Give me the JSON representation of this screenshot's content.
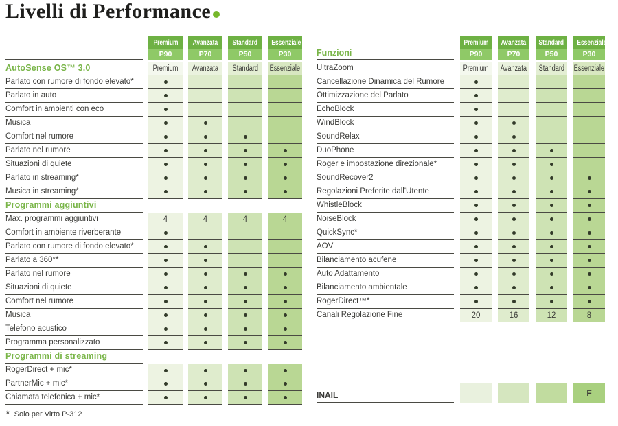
{
  "title": {
    "text": "Livelli di Performance"
  },
  "colors": {
    "accent_green": "#76b82a",
    "heading_green": "#79b548",
    "header_tier_bg": "#6eb144",
    "header_model_bg": "#8fc967",
    "rule": "#4a4a43",
    "label_text": "#3b3b38",
    "dot": "#333b2a",
    "col_normal": [
      "#edf3e2",
      "#dfeccd",
      "#cee3b4",
      "#b9d794"
    ],
    "col_light": [
      "#f4f8ee",
      "#eaf2de",
      "#e3eed3",
      "#d8e7c1"
    ],
    "col_inail": [
      "#e9f1de",
      "#d5e6bf",
      "#c1dc9f",
      "#a9d07f"
    ]
  },
  "columns": [
    {
      "tier": "Premium",
      "model": "P90"
    },
    {
      "tier": "Avanzata",
      "model": "P70"
    },
    {
      "tier": "Standard",
      "model": "P50"
    },
    {
      "tier": "Essenziale",
      "model": "P30"
    }
  ],
  "left_table": {
    "sections": [
      {
        "heading": "AutoSense OS™ 3.0",
        "heading_values": [
          "Premium",
          "Avanzata",
          "Standard",
          "Essenziale"
        ],
        "rows": [
          {
            "label": "Parlato con rumore di fondo elevato*",
            "values": [
              "dot",
              "",
              "",
              ""
            ]
          },
          {
            "label": "Parlato in auto",
            "values": [
              "dot",
              "",
              "",
              ""
            ]
          },
          {
            "label": "Comfort in ambienti con eco",
            "values": [
              "dot",
              "",
              "",
              ""
            ]
          },
          {
            "label": "Musica",
            "values": [
              "dot",
              "dot",
              "",
              ""
            ]
          },
          {
            "label": "Comfort nel rumore",
            "values": [
              "dot",
              "dot",
              "dot",
              ""
            ]
          },
          {
            "label": "Parlato nel rumore",
            "values": [
              "dot",
              "dot",
              "dot",
              "dot"
            ]
          },
          {
            "label": "Situazioni di quiete",
            "values": [
              "dot",
              "dot",
              "dot",
              "dot"
            ]
          },
          {
            "label": "Parlato in streaming*",
            "values": [
              "dot",
              "dot",
              "dot",
              "dot"
            ]
          },
          {
            "label": "Musica in streaming*",
            "values": [
              "dot",
              "dot",
              "dot",
              "dot"
            ]
          }
        ]
      },
      {
        "heading": "Programmi aggiuntivi",
        "heading_values": null,
        "rows": [
          {
            "label": "Max. programmi aggiuntivi",
            "values": [
              "4",
              "4",
              "4",
              "4"
            ]
          },
          {
            "label": "Comfort in ambiente riverberante",
            "values": [
              "dot",
              "",
              "",
              ""
            ]
          },
          {
            "label": "Parlato con rumore di fondo elevato*",
            "values": [
              "dot",
              "dot",
              "",
              ""
            ]
          },
          {
            "label": "Parlato a 360°*",
            "values": [
              "dot",
              "dot",
              "",
              ""
            ]
          },
          {
            "label": "Parlato nel rumore",
            "values": [
              "dot",
              "dot",
              "dot",
              "dot"
            ]
          },
          {
            "label": "Situazioni di quiete",
            "values": [
              "dot",
              "dot",
              "dot",
              "dot"
            ]
          },
          {
            "label": "Comfort nel rumore",
            "values": [
              "dot",
              "dot",
              "dot",
              "dot"
            ]
          },
          {
            "label": "Musica",
            "values": [
              "dot",
              "dot",
              "dot",
              "dot"
            ]
          },
          {
            "label": "Telefono acustico",
            "values": [
              "dot",
              "dot",
              "dot",
              "dot"
            ]
          },
          {
            "label": "Programma personalizzato",
            "values": [
              "dot",
              "dot",
              "dot",
              "dot"
            ]
          }
        ]
      },
      {
        "heading": "Programmi di streaming",
        "heading_values": null,
        "rows": [
          {
            "label": "RogerDirect + mic*",
            "values": [
              "dot",
              "dot",
              "dot",
              "dot"
            ]
          },
          {
            "label": "PartnerMic + mic*",
            "values": [
              "dot",
              "dot",
              "dot",
              "dot"
            ]
          },
          {
            "label": "Chiamata telefonica + mic*",
            "values": [
              "dot",
              "dot",
              "dot",
              "dot"
            ]
          }
        ]
      }
    ]
  },
  "right_table": {
    "heading": "Funzioni",
    "rows": [
      {
        "label": "UltraZoom",
        "values": [
          "Premium",
          "Avanzata",
          "Standard",
          "Essenziale"
        ],
        "light": true
      },
      {
        "label": "Cancellazione Dinamica del Rumore",
        "values": [
          "dot",
          "",
          "",
          ""
        ]
      },
      {
        "label": "Ottimizzazione del Parlato",
        "values": [
          "dot",
          "",
          "",
          ""
        ]
      },
      {
        "label": "EchoBlock",
        "values": [
          "dot",
          "",
          "",
          ""
        ]
      },
      {
        "label": "WindBlock",
        "values": [
          "dot",
          "dot",
          "",
          ""
        ]
      },
      {
        "label": "SoundRelax",
        "values": [
          "dot",
          "dot",
          "",
          ""
        ]
      },
      {
        "label": "DuoPhone",
        "values": [
          "dot",
          "dot",
          "dot",
          ""
        ]
      },
      {
        "label": "Roger e impostazione direzionale*",
        "values": [
          "dot",
          "dot",
          "dot",
          ""
        ]
      },
      {
        "label": "SoundRecover2",
        "values": [
          "dot",
          "dot",
          "dot",
          "dot"
        ]
      },
      {
        "label": "Regolazioni Preferite dall'Utente",
        "values": [
          "dot",
          "dot",
          "dot",
          "dot"
        ]
      },
      {
        "label": "WhistleBlock",
        "values": [
          "dot",
          "dot",
          "dot",
          "dot"
        ]
      },
      {
        "label": "NoiseBlock",
        "values": [
          "dot",
          "dot",
          "dot",
          "dot"
        ]
      },
      {
        "label": "QuickSync*",
        "values": [
          "dot",
          "dot",
          "dot",
          "dot"
        ]
      },
      {
        "label": "AOV",
        "values": [
          "dot",
          "dot",
          "dot",
          "dot"
        ]
      },
      {
        "label": "Bilanciamento acufene",
        "values": [
          "dot",
          "dot",
          "dot",
          "dot"
        ]
      },
      {
        "label": "Auto Adattamento",
        "values": [
          "dot",
          "dot",
          "dot",
          "dot"
        ]
      },
      {
        "label": "Bilanciamento ambientale",
        "values": [
          "dot",
          "dot",
          "dot",
          "dot"
        ]
      },
      {
        "label": "RogerDirect™*",
        "values": [
          "dot",
          "dot",
          "dot",
          "dot"
        ]
      },
      {
        "label": "Canali Regolazione Fine",
        "values": [
          "20",
          "16",
          "12",
          "8"
        ]
      }
    ],
    "inail": {
      "label": "INAIL",
      "values": [
        "",
        "",
        "",
        "F"
      ]
    }
  },
  "footnote": {
    "marker": "*",
    "text": "Solo per Virto P-312"
  }
}
